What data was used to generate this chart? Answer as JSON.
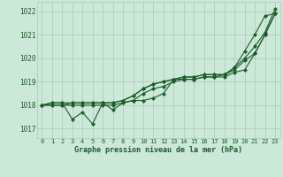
{
  "background_color": "#cce8d8",
  "grid_color": "#aac8b8",
  "line_color": "#1a5c2a",
  "text_color": "#1a5c2a",
  "xlabel": "Graphe pression niveau de la mer (hPa)",
  "ylim": [
    1016.6,
    1022.4
  ],
  "xlim": [
    -0.5,
    23.5
  ],
  "yticks": [
    1017,
    1018,
    1019,
    1020,
    1021,
    1022
  ],
  "xticks": [
    0,
    1,
    2,
    3,
    4,
    5,
    6,
    7,
    8,
    9,
    10,
    11,
    12,
    13,
    14,
    15,
    16,
    17,
    18,
    19,
    20,
    21,
    22,
    23
  ],
  "line1": [
    1018.0,
    1018.1,
    1018.1,
    1017.4,
    1017.7,
    1017.2,
    1018.1,
    1017.8,
    1018.1,
    1018.2,
    1018.2,
    1018.3,
    1018.5,
    1019.1,
    1019.1,
    1019.1,
    1019.2,
    1019.2,
    1019.3,
    1019.6,
    1020.3,
    1021.0,
    1021.8,
    1021.9
  ],
  "line2": [
    1018.0,
    1018.1,
    1018.1,
    1018.1,
    1018.1,
    1018.1,
    1018.1,
    1018.1,
    1018.2,
    1018.4,
    1018.7,
    1018.9,
    1019.0,
    1019.1,
    1019.2,
    1019.2,
    1019.3,
    1019.3,
    1019.3,
    1019.5,
    1019.9,
    1020.2,
    1021.0,
    1021.9
  ],
  "line3": [
    1018.0,
    1018.0,
    1018.0,
    1018.1,
    1018.1,
    1018.1,
    1018.1,
    1018.1,
    1018.2,
    1018.4,
    1018.7,
    1018.9,
    1019.0,
    1019.1,
    1019.2,
    1019.2,
    1019.3,
    1019.3,
    1019.3,
    1019.6,
    1020.0,
    1020.5,
    1021.1,
    1022.1
  ],
  "line4": [
    1018.0,
    1018.0,
    1018.0,
    1018.0,
    1018.0,
    1018.0,
    1018.0,
    1018.0,
    1018.1,
    1018.2,
    1018.5,
    1018.7,
    1018.8,
    1019.0,
    1019.1,
    1019.1,
    1019.2,
    1019.2,
    1019.2,
    1019.4,
    1019.5,
    1020.2,
    1021.0,
    1021.9
  ],
  "figsize": [
    3.2,
    2.0
  ],
  "dpi": 100
}
